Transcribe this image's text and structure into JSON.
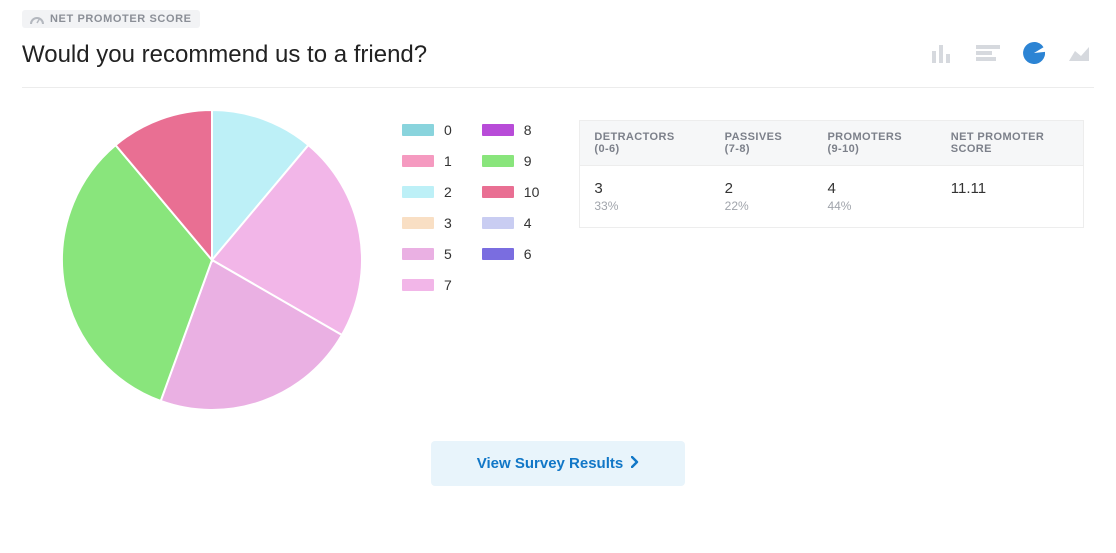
{
  "header": {
    "badge_label": "NET PROMOTER SCORE",
    "title": "Would you recommend us to a friend?",
    "icon_color_inactive": "#d6d9de",
    "icon_color_active": "#2c84d4",
    "chart_type_icons": [
      {
        "name": "bar-chart-icon",
        "active": false
      },
      {
        "name": "horizontal-bar-icon",
        "active": false
      },
      {
        "name": "pie-chart-icon",
        "active": true
      },
      {
        "name": "area-chart-icon",
        "active": false
      }
    ]
  },
  "pie_chart": {
    "type": "pie",
    "diameter": 300,
    "background_color": "#ffffff",
    "stroke_color": "#ffffff",
    "stroke_width": 2,
    "start_angle_deg": -90,
    "slices": [
      {
        "label": "2",
        "value": 11.1,
        "color": "#bdf0f7"
      },
      {
        "label": "7",
        "value": 22.2,
        "color": "#f2b6e8"
      },
      {
        "label": "5",
        "value": 22.2,
        "color": "#eab0e3"
      },
      {
        "label": "9",
        "value": 33.3,
        "color": "#89e57c"
      },
      {
        "label": "10",
        "value": 11.1,
        "color": "#e96f93"
      }
    ]
  },
  "legend": {
    "font_size": 14,
    "text_color": "#333333",
    "columns": 2,
    "swatch_width": 32,
    "swatch_height": 12,
    "items": [
      {
        "label": "0",
        "color": "#89d4dd"
      },
      {
        "label": "8",
        "color": "#b84cd8"
      },
      {
        "label": "1",
        "color": "#f59ac0"
      },
      {
        "label": "9",
        "color": "#89e57c"
      },
      {
        "label": "2",
        "color": "#bdf0f7"
      },
      {
        "label": "10",
        "color": "#e96f93"
      },
      {
        "label": "3",
        "color": "#f9dfc4"
      },
      {
        "label": "4",
        "color": "#c9cdf2"
      },
      {
        "label": "5",
        "color": "#eab0e3"
      },
      {
        "label": "6",
        "color": "#7a6de0"
      },
      {
        "label": "7",
        "color": "#f2b6e8"
      }
    ]
  },
  "stats": {
    "header_bg": "#f6f7f8",
    "header_color": "#7c808a",
    "border_color": "#ededed",
    "columns": [
      {
        "label_line1": "DETRACTORS",
        "label_line2": "(0-6)",
        "value": "3",
        "sub": "33%"
      },
      {
        "label_line1": "PASSIVES",
        "label_line2": "(7-8)",
        "value": "2",
        "sub": "22%"
      },
      {
        "label_line1": "PROMOTERS",
        "label_line2": "(9-10)",
        "value": "4",
        "sub": "44%"
      },
      {
        "label_line1": "NET PROMOTER",
        "label_line2": "SCORE",
        "value": "11.11",
        "sub": ""
      }
    ]
  },
  "footer": {
    "button_label": "View Survey Results",
    "button_bg": "#e8f4fb",
    "button_color": "#1177c7"
  }
}
